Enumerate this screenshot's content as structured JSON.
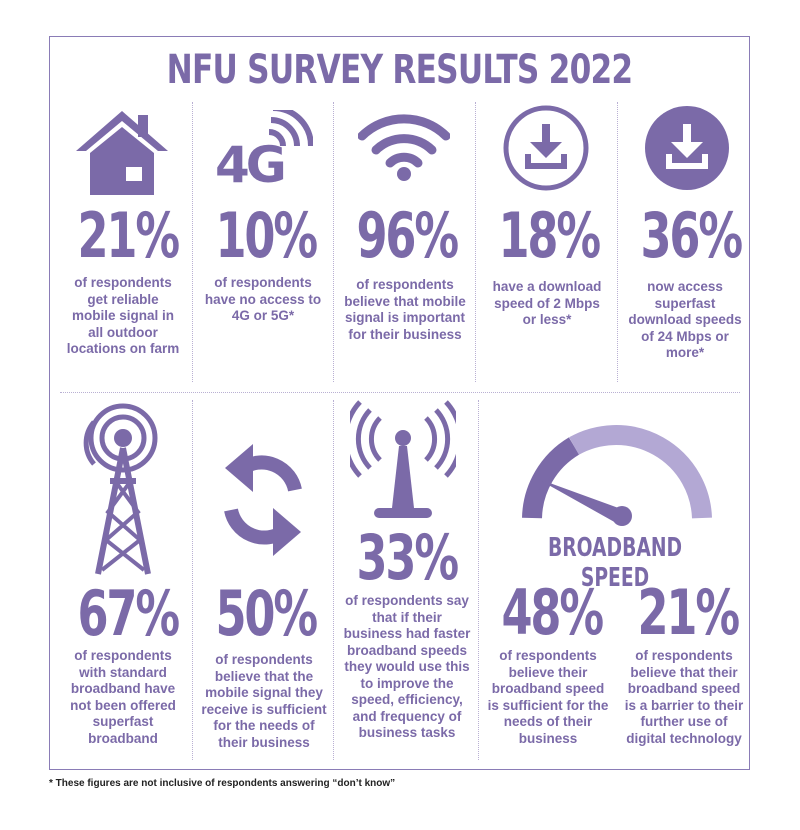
{
  "title": "NFU SURVEY RESULTS 2022",
  "colors": {
    "primary": "#7b6aa8",
    "light": "#b3a8d4",
    "divider": "#b9b0d3"
  },
  "stats": [
    {
      "icon": "house-icon",
      "value": "21%",
      "text": "of respondents get reliable mobile signal in all outdoor locations on farm"
    },
    {
      "icon": "4g-signal-icon",
      "value": "10%",
      "text": "of respondents have no access to 4G or 5G*"
    },
    {
      "icon": "wifi-icon",
      "value": "96%",
      "text": "of respondents believe that mobile signal is important for their business"
    },
    {
      "icon": "download-outline-icon",
      "value": "18%",
      "text": "have a download speed of 2 Mbps or less*"
    },
    {
      "icon": "download-filled-icon",
      "value": "36%",
      "text": "now access superfast download speeds of 24 Mbps or more*"
    },
    {
      "icon": "transmission-tower-icon",
      "value": "67%",
      "text": "of respondents with standard broadband have not been offered superfast broadband"
    },
    {
      "icon": "refresh-arrows-icon",
      "value": "50%",
      "text": "of respondents believe that the mobile signal they receive is sufficient for the needs of their business"
    },
    {
      "icon": "antenna-icon",
      "value": "33%",
      "text": "of respondents say that if their business had faster broadband speeds they would use this to improve the speed, efficiency, and frequency of business tasks"
    },
    {
      "icon": "",
      "value": "48%",
      "text": "of respondents believe their broadband speed is sufficient for the needs of their business"
    },
    {
      "icon": "",
      "value": "21%",
      "text": "of respondents believe that their broadband speed is a barrier to their further use of digital technology"
    }
  ],
  "broadband": {
    "heading": "BROADBAND SPEED",
    "icon": "speedometer-icon"
  },
  "icon_text": {
    "mobile_generation": "4G"
  },
  "footnote": "* These figures are not inclusive of respondents answering “don’t know”"
}
